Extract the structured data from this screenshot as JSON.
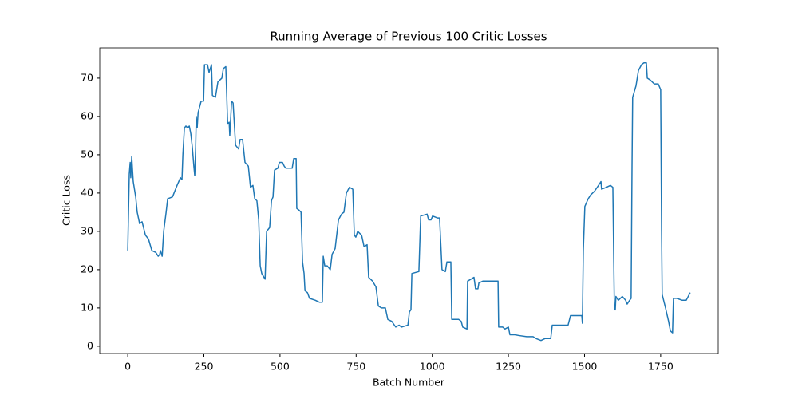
{
  "chart_data": {
    "type": "line",
    "title": "Running Average of Previous 100 Critic Losses",
    "xlabel": "Batch Number",
    "ylabel": "Critic Loss",
    "color": "#1f77b4",
    "xlim": [
      -92,
      1939
    ],
    "ylim": [
      -1.9,
      77.9
    ],
    "xticks": [
      0,
      250,
      500,
      750,
      1000,
      1250,
      1500,
      1750
    ],
    "yticks": [
      0,
      10,
      20,
      30,
      40,
      50,
      60,
      70
    ],
    "grid": false,
    "x": [
      0,
      5,
      8,
      10,
      13,
      18,
      26,
      31,
      39,
      47,
      58,
      68,
      79,
      92,
      100,
      105,
      107,
      113,
      118,
      126,
      131,
      147,
      162,
      173,
      178,
      181,
      186,
      191,
      197,
      202,
      207,
      212,
      217,
      220,
      223,
      225,
      228,
      231,
      236,
      241,
      249,
      252,
      262,
      267,
      275,
      278,
      288,
      296,
      309,
      314,
      322,
      328,
      333,
      335,
      341,
      346,
      354,
      364,
      369,
      377,
      385,
      396,
      403,
      411,
      417,
      424,
      430,
      435,
      440,
      451,
      456,
      461,
      466,
      472,
      477,
      482,
      493,
      498,
      508,
      514,
      519,
      540,
      545,
      553,
      555,
      563,
      569,
      574,
      579,
      582,
      590,
      597,
      616,
      629,
      639,
      642,
      647,
      655,
      665,
      671,
      681,
      692,
      702,
      710,
      718,
      728,
      739,
      744,
      749,
      755,
      768,
      776,
      786,
      791,
      804,
      815,
      823,
      833,
      846,
      854,
      867,
      880,
      891,
      899,
      920,
      925,
      930,
      933,
      956,
      962,
      983,
      988,
      996,
      1001,
      1017,
      1024,
      1032,
      1043,
      1048,
      1061,
      1064,
      1087,
      1095,
      1100,
      1114,
      1116,
      1127,
      1137,
      1142,
      1150,
      1153,
      1166,
      1189,
      1216,
      1218,
      1231,
      1239,
      1250,
      1255,
      1271,
      1284,
      1310,
      1331,
      1341,
      1357,
      1370,
      1389,
      1394,
      1415,
      1446,
      1454,
      1480,
      1491,
      1493,
      1496,
      1501,
      1512,
      1520,
      1533,
      1546,
      1554,
      1556,
      1572,
      1585,
      1593,
      1596,
      1598,
      1601,
      1603,
      1611,
      1624,
      1635,
      1640,
      1648,
      1653,
      1656,
      1658,
      1669,
      1677,
      1687,
      1695,
      1703,
      1706,
      1716,
      1729,
      1742,
      1750,
      1753,
      1755,
      1766,
      1776,
      1782,
      1789,
      1792,
      1803,
      1821,
      1834,
      1847
    ],
    "values": [
      25,
      45,
      48,
      44,
      49.5,
      43,
      39,
      35,
      32,
      32.5,
      29,
      28,
      25,
      24.5,
      23.5,
      24,
      25,
      23.5,
      30,
      35,
      38.5,
      39,
      42,
      44,
      43.5,
      50,
      57,
      57.5,
      57,
      57.5,
      55.5,
      52,
      47,
      44.5,
      52,
      60,
      57,
      61,
      62.5,
      64,
      64,
      73.5,
      73.5,
      71.5,
      73.5,
      65.5,
      65,
      69,
      70,
      72.5,
      73,
      58,
      58.5,
      55,
      64,
      63.5,
      52.5,
      51.5,
      54,
      54,
      48,
      47,
      41.5,
      42,
      38.5,
      38,
      33,
      21,
      19,
      17.5,
      30,
      30.5,
      31,
      38,
      39,
      46,
      46.5,
      48,
      48,
      47,
      46.5,
      46.5,
      49,
      49,
      36,
      35.5,
      35,
      22,
      19,
      14.5,
      14,
      12.5,
      12,
      11.5,
      11.5,
      23.5,
      21,
      21,
      20,
      24,
      25.5,
      33,
      34.5,
      35,
      40,
      41.5,
      41,
      29,
      28.5,
      30,
      29,
      26,
      26.5,
      18,
      17,
      15.5,
      10.5,
      10,
      10,
      7,
      6.5,
      5,
      5.5,
      5,
      5.5,
      9,
      9.5,
      19,
      19.5,
      34,
      34.5,
      33,
      33,
      34,
      33.5,
      33.5,
      20,
      19.5,
      22,
      22,
      7,
      7,
      6.5,
      5,
      4.5,
      17,
      17.5,
      18,
      15,
      15,
      16.5,
      17,
      17,
      17,
      5,
      5,
      4.5,
      5,
      3,
      3,
      2.8,
      2.5,
      2.5,
      2,
      1.5,
      2,
      2,
      5.5,
      5.5,
      5.5,
      8,
      8,
      8,
      6,
      25,
      36.5,
      38.5,
      39.5,
      40.5,
      42,
      43,
      41,
      41.5,
      42,
      41.5,
      22,
      10,
      9.5,
      13,
      12,
      13,
      12,
      11,
      12,
      12.5,
      47,
      65,
      68,
      72,
      73.5,
      74,
      74,
      70,
      69.5,
      68.5,
      68.5,
      67,
      30,
      13.5,
      10,
      6.5,
      4,
      3.5,
      12.5,
      12.5,
      12,
      12,
      14
    ]
  }
}
